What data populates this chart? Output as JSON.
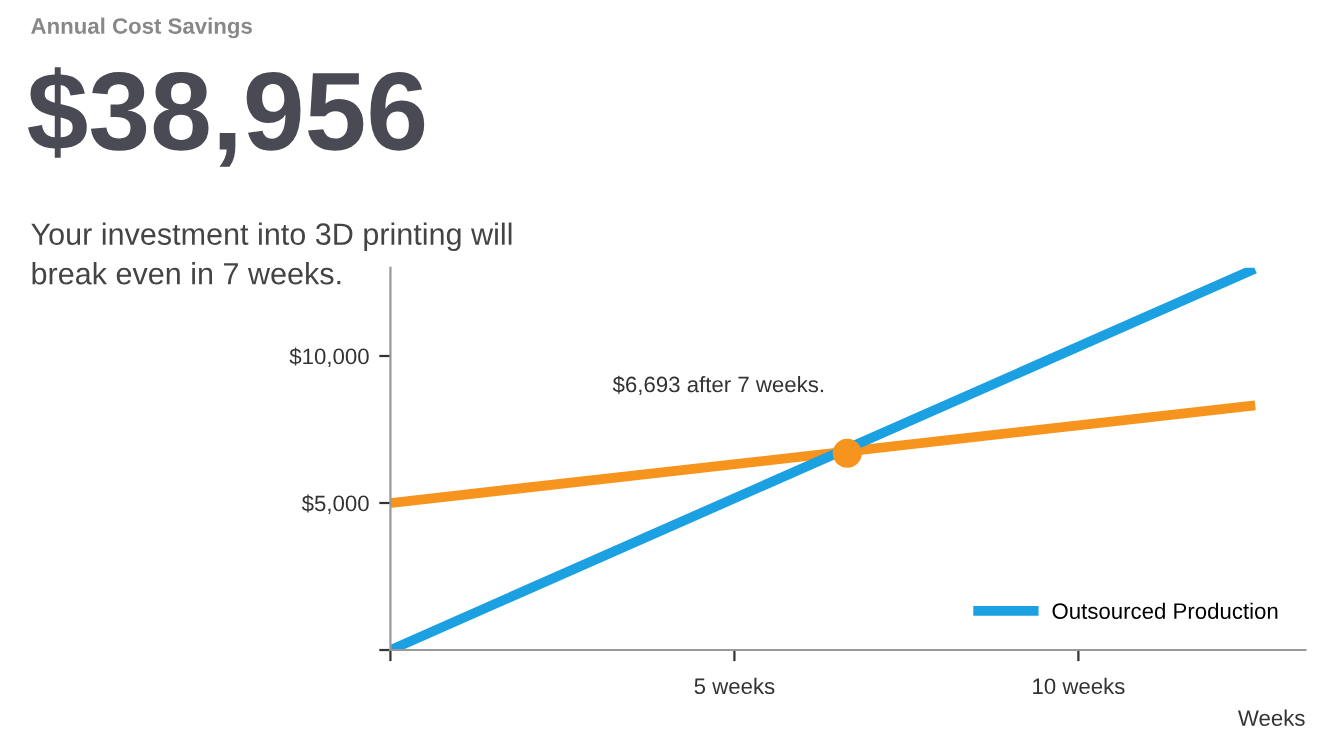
{
  "chart_data": {
    "type": "line",
    "title": "Annual Cost Savings",
    "subtitle": "$38,956",
    "annotations": [
      "Your investment into 3D printing will\nbreak even in 7 weeks.",
      {
        "text": "$6,693 after 7 weeks.",
        "x": 6.64,
        "y": 6693
      }
    ],
    "xlabel": "Weeks",
    "series": [
      {
        "color": "#f7941d",
        "x": [
          0,
          12.5
        ],
        "values": [
          5000,
          8300
        ]
      },
      {
        "name": "Outsourced Production",
        "color": "#1ba1e2",
        "x": [
          0,
          12.5
        ],
        "values": [
          0,
          12900
        ]
      },
      {
        "type": "scatter",
        "color": "#f7941d",
        "x": [
          6.64
        ],
        "values": [
          6693
        ],
        "marker": "circle"
      }
    ],
    "xlim": [
      0,
      13.3
    ],
    "ylim": [
      0,
      13000
    ],
    "xticks": [
      {
        "value": 0,
        "label": null
      },
      {
        "value": 5,
        "label": "5 weeks"
      },
      {
        "value": 10,
        "label": "10 weeks"
      }
    ],
    "yticks": [
      {
        "value": 0,
        "label": null
      },
      {
        "value": 5000,
        "label": "$5,000"
      },
      {
        "value": 10000,
        "label": "$10,000"
      }
    ],
    "legend": "bottom right",
    "marker": "none",
    "line_style": "solid"
  }
}
